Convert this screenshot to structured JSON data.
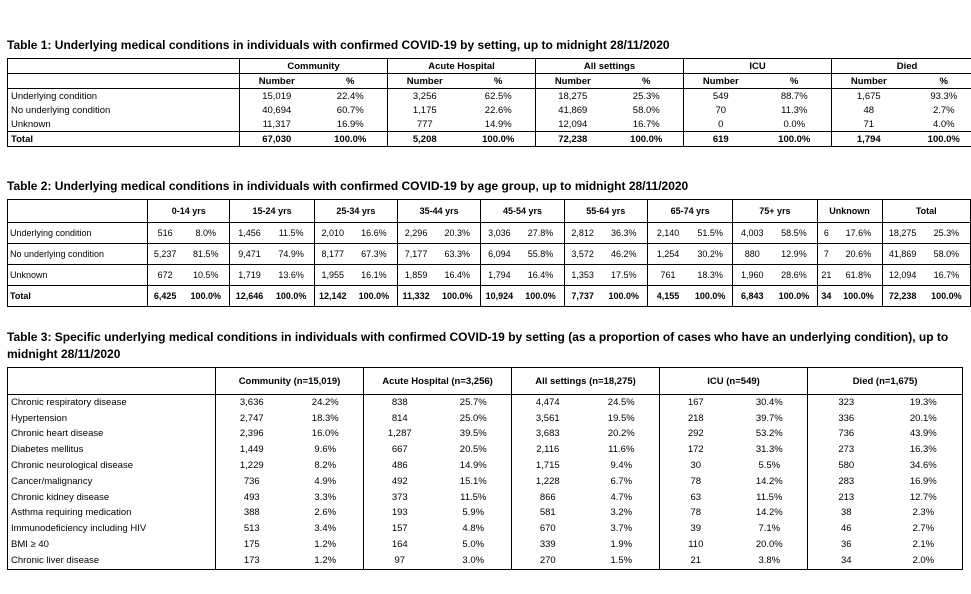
{
  "table1": {
    "caption": "Table 1: Underlying medical conditions in individuals with confirmed COVID-19 by setting, up to midnight 28/11/2020",
    "groups": [
      "Community",
      "Acute Hospital",
      "All settings",
      "ICU",
      "Died"
    ],
    "subheaders": [
      "Number",
      "%"
    ],
    "rows": [
      {
        "label": "Underlying condition",
        "values": [
          "15,019",
          "22.4%",
          "3,256",
          "62.5%",
          "18,275",
          "25.3%",
          "549",
          "88.7%",
          "1,675",
          "93.3%"
        ]
      },
      {
        "label": "No underlying condition",
        "values": [
          "40,694",
          "60.7%",
          "1,175",
          "22.6%",
          "41,869",
          "58.0%",
          "70",
          "11.3%",
          "48",
          "2.7%"
        ]
      },
      {
        "label": "Unknown",
        "values": [
          "11,317",
          "16.9%",
          "777",
          "14.9%",
          "12,094",
          "16.7%",
          "0",
          "0.0%",
          "71",
          "4.0%"
        ]
      },
      {
        "label": "Total",
        "values": [
          "67,030",
          "100.0%",
          "5,208",
          "100.0%",
          "72,238",
          "100.0%",
          "619",
          "100.0%",
          "1,794",
          "100.0%"
        ]
      }
    ]
  },
  "table2": {
    "caption": "Table 2: Underlying medical conditions in individuals with confirmed COVID-19 by age group, up to midnight 28/11/2020",
    "groups": [
      "0-14 yrs",
      "15-24 yrs",
      "25-34 yrs",
      "35-44 yrs",
      "45-54 yrs",
      "55-64 yrs",
      "65-74 yrs",
      "75+ yrs",
      "Unknown",
      "Total"
    ],
    "rows": [
      {
        "label": "Underlying condition",
        "values": [
          "516",
          "8.0%",
          "1,456",
          "11.5%",
          "2,010",
          "16.6%",
          "2,296",
          "20.3%",
          "3,036",
          "27.8%",
          "2,812",
          "36.3%",
          "2,140",
          "51.5%",
          "4,003",
          "58.5%",
          "6",
          "17.6%",
          "18,275",
          "25.3%"
        ]
      },
      {
        "label": "No underlying condition",
        "values": [
          "5,237",
          "81.5%",
          "9,471",
          "74.9%",
          "8,177",
          "67.3%",
          "7,177",
          "63.3%",
          "6,094",
          "55.8%",
          "3,572",
          "46.2%",
          "1,254",
          "30.2%",
          "880",
          "12.9%",
          "7",
          "20.6%",
          "41,869",
          "58.0%"
        ]
      },
      {
        "label": "Unknown",
        "values": [
          "672",
          "10.5%",
          "1,719",
          "13.6%",
          "1,955",
          "16.1%",
          "1,859",
          "16.4%",
          "1,794",
          "16.4%",
          "1,353",
          "17.5%",
          "761",
          "18.3%",
          "1,960",
          "28.6%",
          "21",
          "61.8%",
          "12,094",
          "16.7%"
        ]
      },
      {
        "label": "Total",
        "values": [
          "6,425",
          "100.0%",
          "12,646",
          "100.0%",
          "12,142",
          "100.0%",
          "11,332",
          "100.0%",
          "10,924",
          "100.0%",
          "7,737",
          "100.0%",
          "4,155",
          "100.0%",
          "6,843",
          "100.0%",
          "34",
          "100.0%",
          "72,238",
          "100.0%"
        ]
      }
    ]
  },
  "table3": {
    "caption_line1": "Table 3: Specific underlying medical conditions in individuals with confirmed COVID-19 by setting (as a proportion of cases who have an underlying condition), up to",
    "caption_line2": "midnight 28/11/2020",
    "groups": [
      "Community (n=15,019)",
      "Acute Hospital (n=3,256)",
      "All settings (n=18,275)",
      "ICU (n=549)",
      "Died (n=1,675)"
    ],
    "rows": [
      {
        "label": "Chronic respiratory disease",
        "values": [
          "3,636",
          "24.2%",
          "838",
          "25.7%",
          "4,474",
          "24.5%",
          "167",
          "30.4%",
          "323",
          "19.3%"
        ]
      },
      {
        "label": "Hypertension",
        "values": [
          "2,747",
          "18.3%",
          "814",
          "25.0%",
          "3,561",
          "19.5%",
          "218",
          "39.7%",
          "336",
          "20.1%"
        ]
      },
      {
        "label": "Chronic heart disease",
        "values": [
          "2,396",
          "16.0%",
          "1,287",
          "39.5%",
          "3,683",
          "20.2%",
          "292",
          "53.2%",
          "736",
          "43.9%"
        ]
      },
      {
        "label": "Diabetes mellitus",
        "values": [
          "1,449",
          "9.6%",
          "667",
          "20.5%",
          "2,116",
          "11.6%",
          "172",
          "31.3%",
          "273",
          "16.3%"
        ]
      },
      {
        "label": "Chronic neurological disease",
        "values": [
          "1,229",
          "8.2%",
          "486",
          "14.9%",
          "1,715",
          "9.4%",
          "30",
          "5.5%",
          "580",
          "34.6%"
        ]
      },
      {
        "label": "Cancer/malignancy",
        "values": [
          "736",
          "4.9%",
          "492",
          "15.1%",
          "1,228",
          "6.7%",
          "78",
          "14.2%",
          "283",
          "16.9%"
        ]
      },
      {
        "label": "Chronic kidney disease",
        "values": [
          "493",
          "3.3%",
          "373",
          "11.5%",
          "866",
          "4.7%",
          "63",
          "11.5%",
          "213",
          "12.7%"
        ]
      },
      {
        "label": "Asthma requiring medication",
        "values": [
          "388",
          "2.6%",
          "193",
          "5.9%",
          "581",
          "3.2%",
          "78",
          "14.2%",
          "38",
          "2.3%"
        ]
      },
      {
        "label": "Immunodeficiency including HIV",
        "values": [
          "513",
          "3.4%",
          "157",
          "4.8%",
          "670",
          "3.7%",
          "39",
          "7.1%",
          "46",
          "2.7%"
        ]
      },
      {
        "label": "BMI ≥ 40",
        "values": [
          "175",
          "1.2%",
          "164",
          "5.0%",
          "339",
          "1.9%",
          "110",
          "20.0%",
          "36",
          "2.1%"
        ]
      },
      {
        "label": "Chronic liver disease",
        "values": [
          "173",
          "1.2%",
          "97",
          "3.0%",
          "270",
          "1.5%",
          "21",
          "3.8%",
          "34",
          "2.0%"
        ]
      }
    ]
  }
}
